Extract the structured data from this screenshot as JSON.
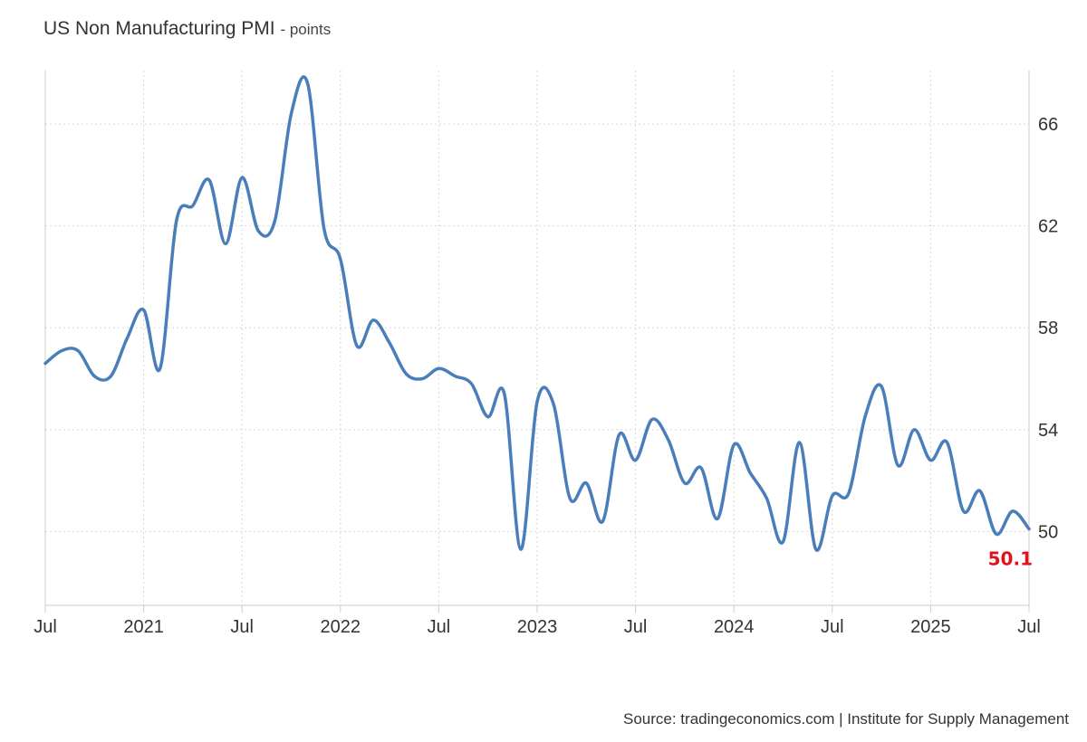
{
  "chart_data": {
    "type": "line",
    "title": "US Non Manufacturing PMI",
    "subtitle": "- points",
    "x_tick_labels": [
      "Jul",
      "2021",
      "Jul",
      "2022",
      "Jul",
      "2023",
      "Jul",
      "2024",
      "Jul",
      "2025",
      "Jul"
    ],
    "x_ticks": [
      "2020-07",
      "2021-01",
      "2021-07",
      "2022-01",
      "2022-07",
      "2023-01",
      "2023-07",
      "2024-01",
      "2024-07",
      "2025-01",
      "2025-07"
    ],
    "y_ticks": [
      50,
      54,
      58,
      62,
      66
    ],
    "ylim": [
      47.1,
      68.1
    ],
    "grid": true,
    "y_axis_side": "right",
    "series": [
      {
        "color": "#4a7ebb",
        "points": [
          [
            "2020-07",
            56.6
          ],
          [
            "2020-08",
            57.1
          ],
          [
            "2020-09",
            57.1
          ],
          [
            "2020-10",
            56.1
          ],
          [
            "2020-11",
            56.1
          ],
          [
            "2020-12",
            57.6
          ],
          [
            "2021-01",
            58.7
          ],
          [
            "2021-02",
            56.4
          ],
          [
            "2021-03",
            62.2
          ],
          [
            "2021-04",
            62.8
          ],
          [
            "2021-05",
            63.8
          ],
          [
            "2021-06",
            61.3
          ],
          [
            "2021-07",
            63.9
          ],
          [
            "2021-08",
            61.8
          ],
          [
            "2021-09",
            62.2
          ],
          [
            "2021-10",
            66.4
          ],
          [
            "2021-11",
            67.6
          ],
          [
            "2021-12",
            61.9
          ],
          [
            "2022-01",
            60.7
          ],
          [
            "2022-02",
            57.3
          ],
          [
            "2022-03",
            58.3
          ],
          [
            "2022-04",
            57.4
          ],
          [
            "2022-05",
            56.2
          ],
          [
            "2022-06",
            56.0
          ],
          [
            "2022-07",
            56.4
          ],
          [
            "2022-08",
            56.1
          ],
          [
            "2022-09",
            55.8
          ],
          [
            "2022-10",
            54.5
          ],
          [
            "2022-11",
            55.4
          ],
          [
            "2022-12",
            49.3
          ],
          [
            "2023-01",
            55.1
          ],
          [
            "2023-02",
            55.0
          ],
          [
            "2023-03",
            51.3
          ],
          [
            "2023-04",
            51.9
          ],
          [
            "2023-05",
            50.4
          ],
          [
            "2023-06",
            53.8
          ],
          [
            "2023-07",
            52.8
          ],
          [
            "2023-08",
            54.4
          ],
          [
            "2023-09",
            53.6
          ],
          [
            "2023-10",
            51.9
          ],
          [
            "2023-11",
            52.5
          ],
          [
            "2023-12",
            50.5
          ],
          [
            "2024-01",
            53.4
          ],
          [
            "2024-02",
            52.3
          ],
          [
            "2024-03",
            51.3
          ],
          [
            "2024-04",
            49.6
          ],
          [
            "2024-05",
            53.5
          ],
          [
            "2024-06",
            49.3
          ],
          [
            "2024-07",
            51.4
          ],
          [
            "2024-08",
            51.5
          ],
          [
            "2024-09",
            54.5
          ],
          [
            "2024-10",
            55.7
          ],
          [
            "2024-11",
            52.6
          ],
          [
            "2024-12",
            54.0
          ],
          [
            "2025-01",
            52.8
          ],
          [
            "2025-02",
            53.5
          ],
          [
            "2025-03",
            50.8
          ],
          [
            "2025-04",
            51.6
          ],
          [
            "2025-05",
            49.9
          ],
          [
            "2025-06",
            50.8
          ],
          [
            "2025-07",
            50.1
          ]
        ]
      }
    ],
    "last_value_label": "50.1",
    "last_value_color": "#e3101e",
    "source": "Source: tradingeconomics.com | Institute for Supply Management"
  }
}
